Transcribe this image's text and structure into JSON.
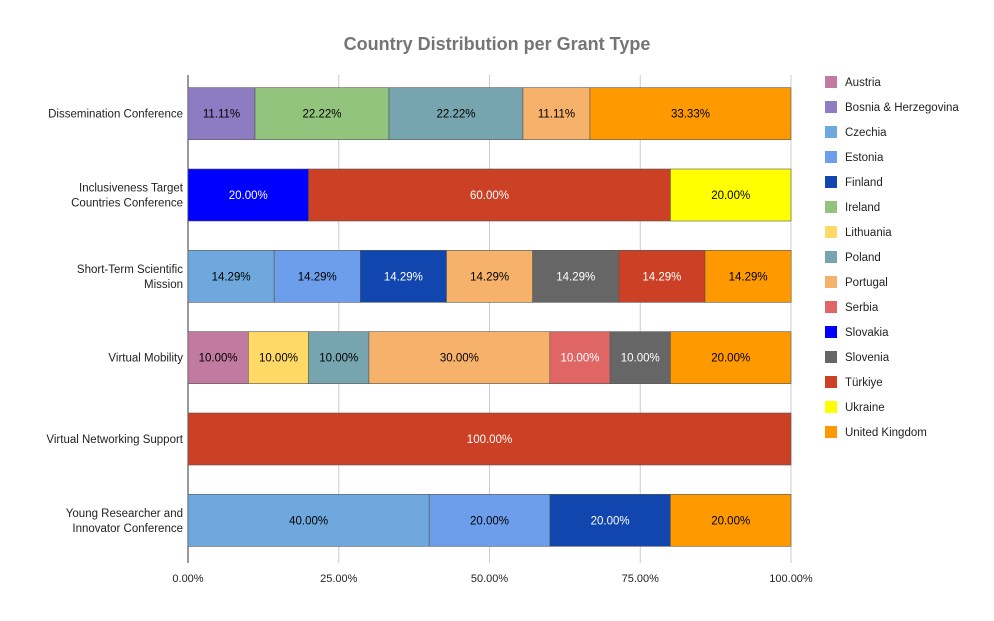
{
  "chart_data": {
    "type": "bar",
    "orientation": "horizontal",
    "stacked": "percent",
    "title": "Country Distribution per Grant Type",
    "xlabel": "",
    "ylabel": "",
    "xlim": [
      0,
      100
    ],
    "xticks": [
      "0.00%",
      "25.00%",
      "50.00%",
      "75.00%",
      "100.00%"
    ],
    "grid": true,
    "legend_position": "right",
    "categories": [
      "Dissemination Conference",
      "Inclusiveness Target Countries Conference",
      "Short-Term Scientific Mission",
      "Virtual Mobility",
      "Virtual Networking Support",
      "Young Researcher and Innovator Conference"
    ],
    "category_lines": [
      [
        "Dissemination Conference"
      ],
      [
        "Inclusiveness Target",
        "Countries Conference"
      ],
      [
        "Short-Term Scientific",
        "Mission"
      ],
      [
        "Virtual Mobility"
      ],
      [
        "Virtual Networking Support"
      ],
      [
        "Young Researcher and",
        "Innovator Conference"
      ]
    ],
    "series": [
      {
        "name": "Austria",
        "color": "#c27ba0",
        "label_color": "#000000",
        "values": [
          0,
          0,
          0,
          10.0,
          0,
          0
        ]
      },
      {
        "name": "Bosnia & Herzegovina",
        "color": "#8e7cc3",
        "label_color": "#000000",
        "values": [
          11.11,
          0,
          0,
          0,
          0,
          0
        ]
      },
      {
        "name": "Czechia",
        "color": "#6fa8dc",
        "label_color": "#000000",
        "values": [
          0,
          0,
          14.29,
          0,
          0,
          40.0
        ]
      },
      {
        "name": "Estonia",
        "color": "#6d9eeb",
        "label_color": "#000000",
        "values": [
          0,
          0,
          14.29,
          0,
          0,
          20.0
        ]
      },
      {
        "name": "Finland",
        "color": "#1046ad",
        "label_color": "#ffffff",
        "values": [
          0,
          0,
          14.29,
          0,
          0,
          20.0
        ]
      },
      {
        "name": "Ireland",
        "color": "#93c47d",
        "label_color": "#000000",
        "values": [
          22.22,
          0,
          0,
          0,
          0,
          0
        ]
      },
      {
        "name": "Lithuania",
        "color": "#ffd966",
        "label_color": "#000000",
        "values": [
          0,
          0,
          0,
          10.0,
          0,
          0
        ]
      },
      {
        "name": "Poland",
        "color": "#76a5af",
        "label_color": "#000000",
        "values": [
          22.22,
          0,
          0,
          10.0,
          0,
          0
        ]
      },
      {
        "name": "Portugal",
        "color": "#f6b26b",
        "label_color": "#000000",
        "values": [
          11.11,
          0,
          14.29,
          30.0,
          0,
          0
        ]
      },
      {
        "name": "Serbia",
        "color": "#e06666",
        "label_color": "#ffffff",
        "values": [
          0,
          0,
          0,
          10.0,
          0,
          0
        ]
      },
      {
        "name": "Slovakia",
        "color": "#0000ff",
        "label_color": "#ffffff",
        "values": [
          0,
          20.0,
          0,
          0,
          0,
          0
        ]
      },
      {
        "name": "Slovenia",
        "color": "#666666",
        "label_color": "#ffffff",
        "values": [
          0,
          0,
          14.29,
          10.0,
          0,
          0
        ]
      },
      {
        "name": "Türkiye",
        "color": "#cc4125",
        "label_color": "#ffffff",
        "values": [
          0,
          60.0,
          14.29,
          0,
          100.0,
          0
        ]
      },
      {
        "name": "Ukraine",
        "color": "#ffff00",
        "label_color": "#000000",
        "values": [
          0,
          20.0,
          0,
          0,
          0,
          0
        ]
      },
      {
        "name": "United Kingdom",
        "color": "#ff9900",
        "label_color": "#000000",
        "values": [
          33.33,
          0,
          14.29,
          20.0,
          0,
          20.0
        ]
      }
    ]
  }
}
